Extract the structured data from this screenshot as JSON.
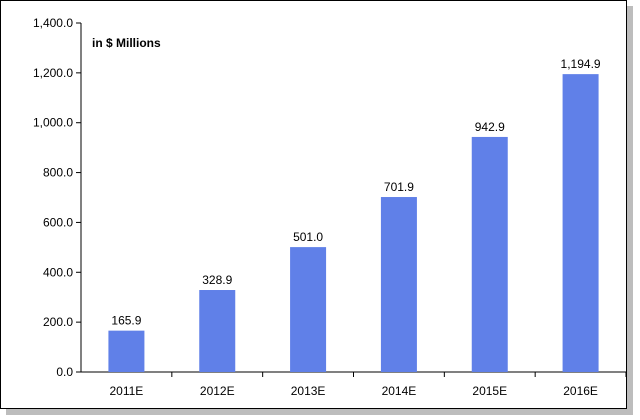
{
  "chart_data": {
    "type": "bar",
    "title": "",
    "subtitle": "in $ Millions",
    "xlabel": "",
    "ylabel": "",
    "categories": [
      "2011E",
      "2012E",
      "2013E",
      "2014E",
      "2015E",
      "2016E"
    ],
    "values": [
      165.9,
      328.9,
      501.0,
      701.9,
      942.9,
      1194.9
    ],
    "value_labels": [
      "165.9",
      "328.9",
      "501.0",
      "701.9",
      "942.9",
      "1,194.9"
    ],
    "ylim": [
      0,
      1400
    ],
    "yticks": [
      0,
      200,
      400,
      600,
      800,
      1000,
      1200,
      1400
    ],
    "ytick_labels": [
      "0.0",
      "200.0",
      "400.0",
      "600.0",
      "800.0",
      "1,000.0",
      "1,200.0",
      "1,400.0"
    ],
    "grid": false,
    "bar_color": "#6080e8"
  }
}
